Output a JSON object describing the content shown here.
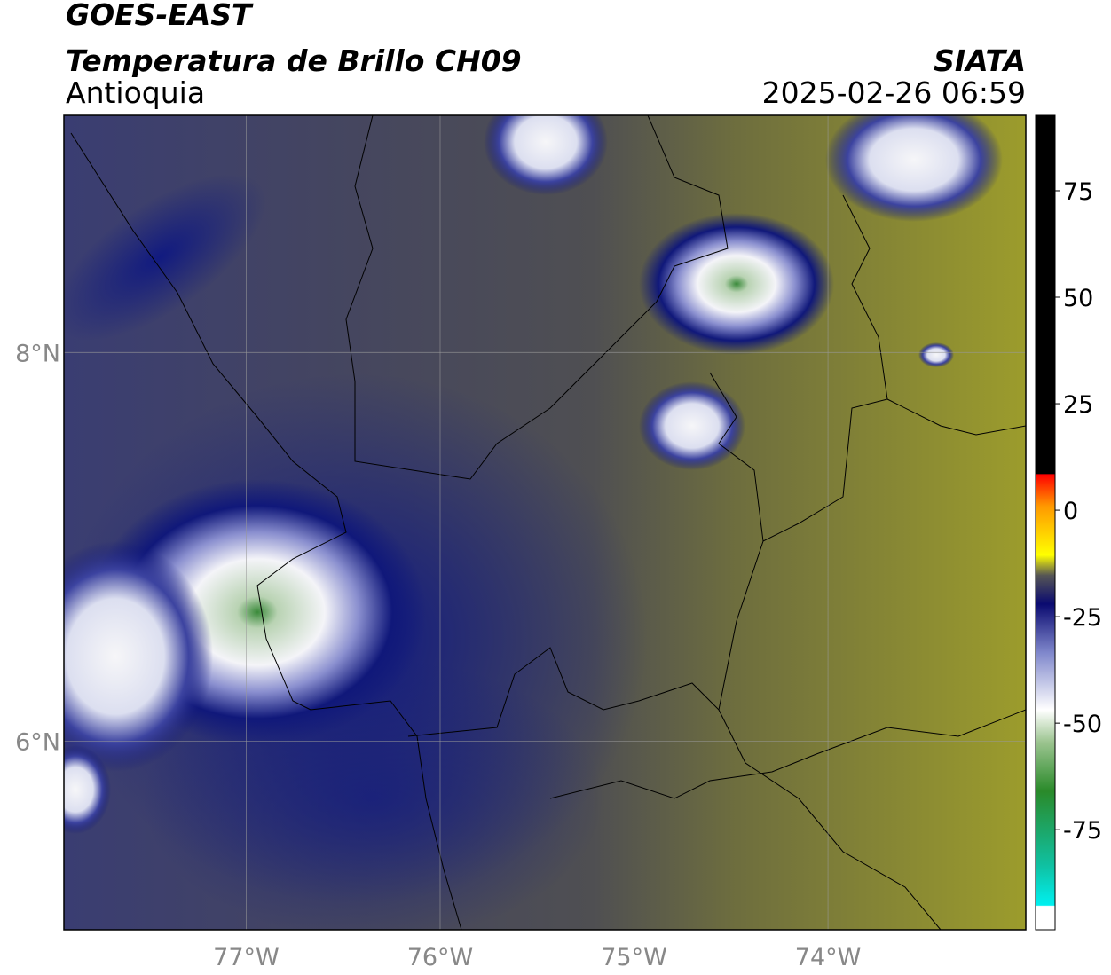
{
  "header": {
    "title": "GOES-EAST",
    "subtitle": "Temperatura de Brillo CH09",
    "region": "Antioquia",
    "source": "SIATA",
    "timestamp": "2025-02-26 06:59"
  },
  "map": {
    "xlim": [
      -77.94,
      -72.98
    ],
    "ylim": [
      5.03,
      9.22
    ],
    "lat_ticks": [
      {
        "value": 8,
        "label": "8°N"
      },
      {
        "value": 6,
        "label": "6°N"
      }
    ],
    "lon_ticks": [
      {
        "value": -77,
        "label": "77°W"
      },
      {
        "value": -76,
        "label": "76°W"
      },
      {
        "value": -75,
        "label": "75°W"
      },
      {
        "value": -74,
        "label": "74°W"
      }
    ]
  },
  "colorbar": {
    "lim": [
      -98.5,
      92.7
    ],
    "ticks": [
      75,
      50,
      25,
      0,
      -25,
      -50,
      -75
    ]
  }
}
